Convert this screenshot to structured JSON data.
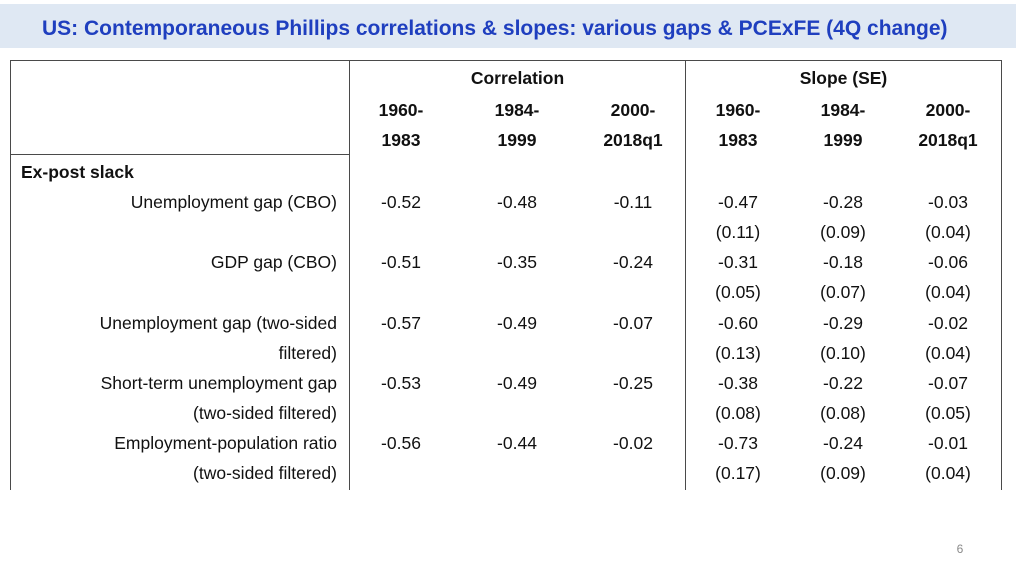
{
  "title": "US: Contemporaneous Phillips correlations & slopes: various gaps & PCExFE (4Q change)",
  "table": {
    "group_headers": {
      "correlation": "Correlation",
      "slope": "Slope (SE)"
    },
    "periods_top": [
      "1960-",
      "1984-",
      "2000-",
      "1960-",
      "1984-",
      "2000-"
    ],
    "periods_bottom": [
      "1983",
      "1999",
      "2018q1",
      "1983",
      "1999",
      "2018q1"
    ],
    "section_label": "Ex-post slack",
    "rows": [
      {
        "label_line1": "Unemployment gap (CBO)",
        "label_line2": "",
        "corr": [
          "-0.52",
          "-0.48",
          "-0.11"
        ],
        "slope": [
          "-0.47",
          "-0.28",
          "-0.03"
        ],
        "se": [
          "(0.11)",
          "(0.09)",
          "(0.04)"
        ]
      },
      {
        "label_line1": "GDP gap (CBO)",
        "label_line2": "",
        "corr": [
          "-0.51",
          "-0.35",
          "-0.24"
        ],
        "slope": [
          "-0.31",
          "-0.18",
          "-0.06"
        ],
        "se": [
          "(0.05)",
          "(0.07)",
          "(0.04)"
        ]
      },
      {
        "label_line1": "Unemployment gap (two-sided",
        "label_line2": "filtered)",
        "corr": [
          "-0.57",
          "-0.49",
          "-0.07"
        ],
        "slope": [
          "-0.60",
          "-0.29",
          "-0.02"
        ],
        "se": [
          "(0.13)",
          "(0.10)",
          "(0.04)"
        ]
      },
      {
        "label_line1": "Short-term unemployment gap",
        "label_line2": "(two-sided filtered)",
        "corr": [
          "-0.53",
          "-0.49",
          "-0.25"
        ],
        "slope": [
          "-0.38",
          "-0.22",
          "-0.07"
        ],
        "se": [
          "(0.08)",
          "(0.08)",
          "(0.05)"
        ]
      },
      {
        "label_line1": "Employment-population ratio",
        "label_line2": "(two-sided filtered)",
        "corr": [
          "-0.56",
          "-0.44",
          "-0.02"
        ],
        "slope": [
          "-0.73",
          "-0.24",
          "-0.01"
        ],
        "se": [
          "(0.17)",
          "(0.09)",
          "(0.04)"
        ]
      }
    ]
  },
  "page_number": "6"
}
